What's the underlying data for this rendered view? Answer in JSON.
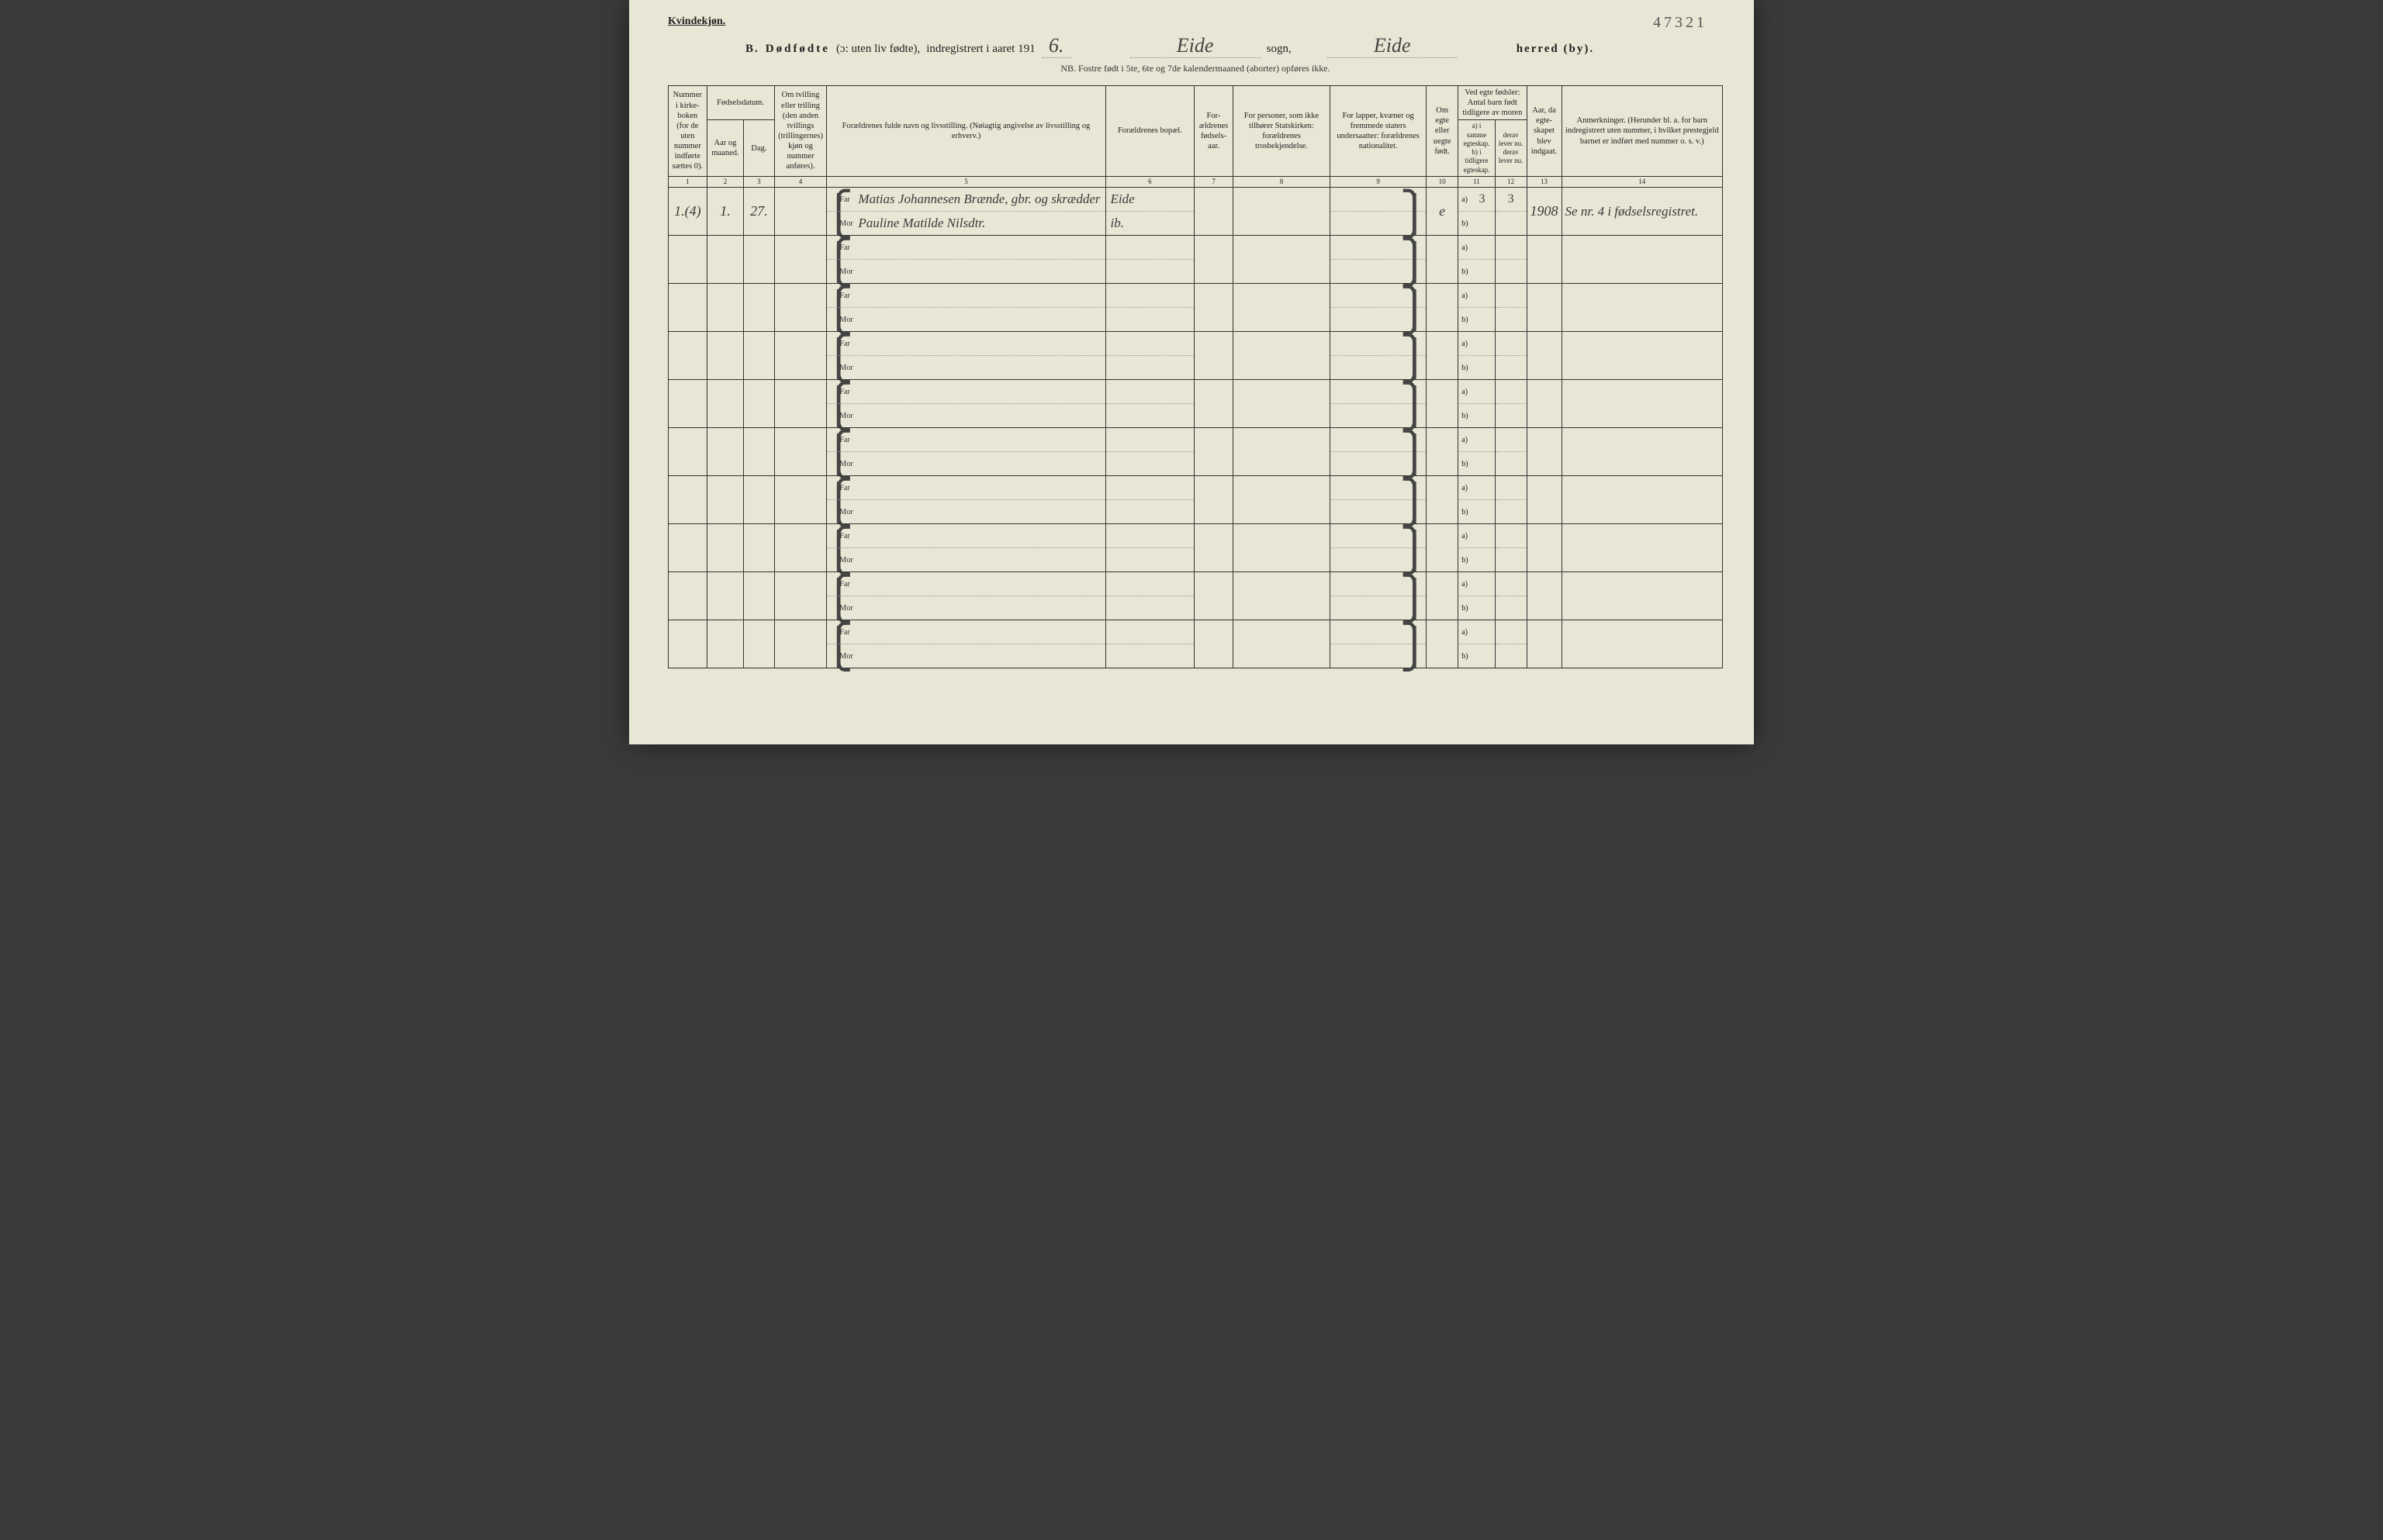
{
  "page_number_topright": "47321",
  "gender_label": "Kvindekjøn.",
  "title": {
    "prefix": "B.",
    "main": "Dødfødte",
    "paren": "(ɔ: uten liv fødte),",
    "registered": "indregistrert i aaret 191",
    "year_suffix_hw": "6.",
    "sogn_hw": "Eide",
    "sogn_label": "sogn,",
    "herred_hw": "Eide",
    "herred_label": "herred (by)."
  },
  "nb_text": "NB.  Fostre født i 5te, 6te og 7de kalendermaaned (aborter) opføres ikke.",
  "headers": {
    "c1": "Nummer i kirke­boken (for de uten nummer indførte sættes 0).",
    "c2": "Fødselsdatum.",
    "c2a": "Aar og maaned.",
    "c2b": "Dag.",
    "c3": "Om tvilling eller trilling (den anden tvillings (trillingernes) kjøn og nummer anføres).",
    "c4": "Forældrenes fulde navn og livsstilling. (Nøiagtig angivelse av livsstilling og erhverv.)",
    "c5": "Forældrenes bopæl.",
    "c6": "For­ældrenes fødsels­aar.",
    "c7": "For personer, som ikke tilhører Statskirken: forældrenes trosbekjendelse.",
    "c8": "For lapper, kvæner og fremmede staters undersaatter: forældrenes nationalitet.",
    "c9": "Om egte eller uegte født.",
    "c10": "Ved egte fødsler: Antal barn født tid­ligere av moren",
    "c10a": "a) i samme egteskap.",
    "c10b": "b) i tidligere egteskap.",
    "c11a": "derav lever nu.",
    "c11b": "derav lever nu.",
    "c12": "Aar, da egte­skapet blev ind­gaat.",
    "c13": "Anmerkninger. (Herunder bl. a. for barn indregistrert uten nummer, i hvilket prestegjeld barnet er indført med nummer o. s. v.)"
  },
  "colnums": [
    "1",
    "2",
    "3",
    "4",
    "5",
    "6",
    "7",
    "8",
    "9",
    "10",
    "11",
    "12",
    "13",
    "14"
  ],
  "row_labels": {
    "far": "Far",
    "mor": "Mor",
    "a": "a)",
    "b": "b)"
  },
  "rows": [
    {
      "num": "1.(4)",
      "aar": "1.",
      "dag": "27.",
      "twin": "",
      "far_name": "Matias Johannesen Brænde, gbr. og skrædder",
      "mor_name": "Pauline Matilde Nilsdtr.",
      "far_bopael": "Eide",
      "mor_bopael": "ib.",
      "fodselsaar": "",
      "tros": "",
      "nation": "",
      "egte": "e",
      "a_val": "3",
      "a_lever": "3",
      "b_val": "",
      "b_lever": "",
      "aar_egt": "1908",
      "anm": "Se nr. 4 i fødselsregistret."
    },
    {
      "far_name": "",
      "mor_name": "",
      "far_bopael": "",
      "mor_bopael": ""
    },
    {
      "far_name": "",
      "mor_name": "",
      "far_bopael": "",
      "mor_bopael": ""
    },
    {
      "far_name": "",
      "mor_name": "",
      "far_bopael": "",
      "mor_bopael": ""
    },
    {
      "far_name": "",
      "mor_name": "",
      "far_bopael": "",
      "mor_bopael": ""
    },
    {
      "far_name": "",
      "mor_name": "",
      "far_bopael": "",
      "mor_bopael": ""
    },
    {
      "far_name": "",
      "mor_name": "",
      "far_bopael": "",
      "mor_bopael": ""
    },
    {
      "far_name": "",
      "mor_name": "",
      "far_bopael": "",
      "mor_bopael": ""
    },
    {
      "far_name": "",
      "mor_name": "",
      "far_bopael": "",
      "mor_bopael": ""
    },
    {
      "far_name": "",
      "mor_name": "",
      "far_bopael": "",
      "mor_bopael": ""
    }
  ],
  "colors": {
    "paper": "#e8e6d4",
    "ink": "#222222",
    "handwriting": "#3a3a3a",
    "border": "#333333"
  }
}
